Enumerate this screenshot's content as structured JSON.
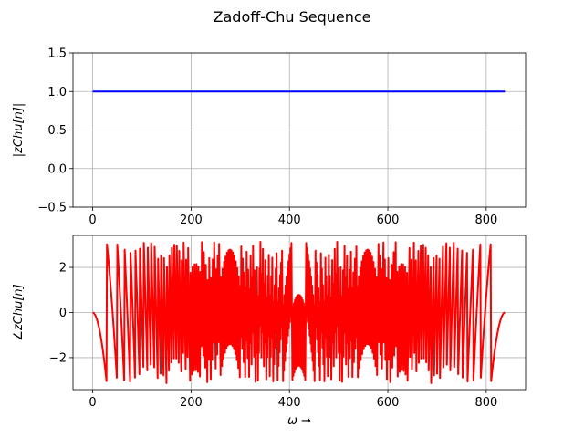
{
  "chart_data": [
    {
      "type": "line",
      "title": "Zadoff-Chu Sequence",
      "ylabel": "|zChu[n]|",
      "xlabel": "",
      "xlim": [
        -40,
        880
      ],
      "ylim": [
        -0.5,
        1.5
      ],
      "xticks": [
        0,
        200,
        400,
        600,
        800
      ],
      "xtick_labels": [
        "0",
        "200",
        "400",
        "600",
        "800"
      ],
      "yticks": [
        -0.5,
        0.0,
        0.5,
        1.0,
        1.5
      ],
      "ytick_labels": [
        "−0.5",
        "0.0",
        "0.5",
        "1.0",
        "1.5"
      ],
      "grid": true,
      "series": [
        {
          "color": "#0000ff",
          "x": [
            0,
            838
          ],
          "y": [
            1.0,
            1.0
          ]
        }
      ]
    },
    {
      "type": "line",
      "ylabel": "∠zChu[n]",
      "xlabel": "ω →",
      "xlim": [
        -40,
        880
      ],
      "ylim": [
        -3.42,
        3.42
      ],
      "xticks": [
        0,
        200,
        400,
        600,
        800
      ],
      "xtick_labels": [
        "0",
        "200",
        "400",
        "600",
        "800"
      ],
      "yticks": [
        -2,
        0,
        2
      ],
      "ytick_labels": [
        "−2",
        "0",
        "2"
      ],
      "grid": true,
      "series": [
        {
          "color": "#ff0000",
          "n_points": 839,
          "formula": "wrap(-pi * u * n * (n + 1) / N)",
          "u": 1,
          "N": 839
        }
      ]
    }
  ]
}
